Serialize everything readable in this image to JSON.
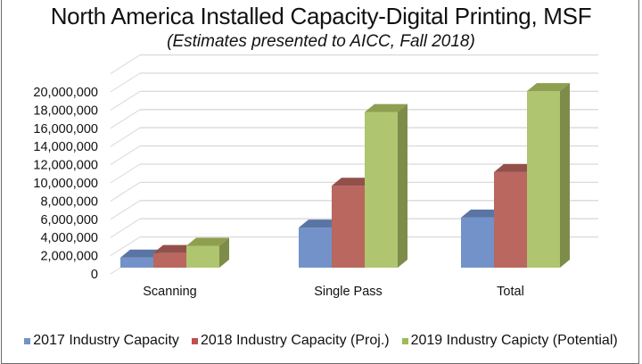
{
  "chart_data": {
    "type": "bar",
    "style": "3d-clustered-column",
    "title": "North America Installed Capacity-Digital Printing, MSF",
    "subtitle": "(Estimates presented to AICC, Fall 2018)",
    "xlabel": "",
    "ylabel": "",
    "categories": [
      "Scanning",
      "Single Pass",
      "Total"
    ],
    "series": [
      {
        "name": "2017 Industry Capacity",
        "color": "#7292c9",
        "top_color": "#5a75a3",
        "side_color": "#4f6790",
        "values": [
          1100000,
          4400000,
          5500000
        ]
      },
      {
        "name": "2018 Industry Capacity (Proj.)",
        "color": "#b9675f",
        "top_color": "#93504a",
        "side_color": "#8a4b45",
        "values": [
          1600000,
          9000000,
          10500000
        ]
      },
      {
        "name": "2019 Industry Capicty (Potential)",
        "color": "#afc56f",
        "top_color": "#8ea050",
        "side_color": "#7d8c49",
        "values": [
          2400000,
          17100000,
          19400000
        ]
      }
    ],
    "yticks": [
      "0",
      "2,000,000",
      "4,000,000",
      "6,000,000",
      "8,000,000",
      "10,000,000",
      "12,000,000",
      "14,000,000",
      "16,000,000",
      "18,000,000",
      "20,000,000"
    ],
    "ytick_values": [
      0,
      2000000,
      4000000,
      6000000,
      8000000,
      10000000,
      12000000,
      14000000,
      16000000,
      18000000,
      20000000
    ],
    "ylim": [
      0,
      22000000
    ],
    "grid": true,
    "legend_position": "bottom"
  }
}
